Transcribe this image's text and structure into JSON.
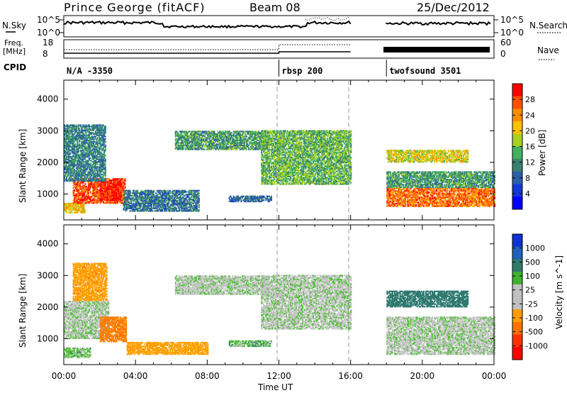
{
  "header": {
    "station": "Prince George (fitACF)",
    "beam": "Beam 08",
    "date": "25/Dec/2012"
  },
  "summary": {
    "nsky_label": "N.Sky",
    "nsky_ticks": [
      "10^5",
      "10^0"
    ],
    "nsearch_label": "N.Search",
    "nsearch_ticks": [
      "10^5",
      "10^0"
    ],
    "freq_label_1": "Freq.",
    "freq_label_2": "[MHz]",
    "freq_ticks": [
      "18",
      "8"
    ],
    "nave_label": "Nave",
    "nave_ticks": [
      "60",
      "0"
    ],
    "cpid_label": "CPID",
    "cpid_segments": [
      {
        "label": "N/A  -3350",
        "start_hour": 0
      },
      {
        "label": "rbsp 200",
        "start_hour": 12
      },
      {
        "label": "twofsound 3501",
        "start_hour": 18
      }
    ]
  },
  "axes": {
    "ylabel": "Slant Range [km]",
    "yticks": [
      "4000",
      "3000",
      "2000",
      "1000"
    ],
    "xlabel": "Time UT",
    "xticks": [
      "00:00",
      "04:00",
      "08:00",
      "12:00",
      "16:00",
      "20:00",
      "00:00"
    ]
  },
  "colorbars": {
    "power": {
      "label": "Power [dB]",
      "ticks": [
        "28",
        "24",
        "20",
        "16",
        "12",
        "8",
        "4"
      ],
      "colors": [
        "#ff0000",
        "#ff5000",
        "#ff8c00",
        "#ffc000",
        "#a8d020",
        "#44b060",
        "#3a8070",
        "#2b5fa8",
        "#1438d8",
        "#0000ff"
      ]
    },
    "velocity": {
      "label": "Velocity [m s^-1]",
      "ticks": [
        "1000",
        "500",
        "100",
        "25",
        "-25",
        "-100",
        "-500",
        "-1000"
      ],
      "colors": [
        "#1030d0",
        "#2060b8",
        "#307a6a",
        "#40b030",
        "#c0c0c0",
        "#c0c0c0",
        "#ff9c00",
        "#ff7000",
        "#ff3000",
        "#ff0000"
      ]
    }
  },
  "chart_data": [
    {
      "type": "heatmap",
      "title": "Power",
      "xlabel": "Time UT",
      "ylabel": "Slant Range [km]",
      "xlim": [
        0,
        24
      ],
      "ylim": [
        180,
        4600
      ],
      "clabel": "Power [dB]",
      "clim": [
        0,
        30
      ],
      "regions": [
        {
          "t0": 0.0,
          "t1": 1.2,
          "r0": 400,
          "r1": 700,
          "value": 20
        },
        {
          "t0": 0.5,
          "t1": 3.4,
          "r0": 700,
          "r1": 1500,
          "value": 26
        },
        {
          "t0": 2.0,
          "t1": 3.2,
          "r0": 800,
          "r1": 1400,
          "value": 28
        },
        {
          "t0": 0.0,
          "t1": 2.3,
          "r0": 1400,
          "r1": 3200,
          "value": 10
        },
        {
          "t0": 3.3,
          "t1": 7.5,
          "r0": 450,
          "r1": 1100,
          "value": 9
        },
        {
          "t0": 6.2,
          "t1": 11.2,
          "r0": 2400,
          "r1": 3000,
          "value": 12
        },
        {
          "t0": 9.2,
          "t1": 11.6,
          "r0": 750,
          "r1": 950,
          "value": 8
        },
        {
          "t0": 11.0,
          "t1": 16.0,
          "r0": 1300,
          "r1": 3000,
          "value": 14
        },
        {
          "t0": 18.0,
          "t1": 24.0,
          "r0": 600,
          "r1": 1200,
          "value": 24
        },
        {
          "t0": 18.0,
          "t1": 24.0,
          "r0": 1200,
          "r1": 1700,
          "value": 12
        },
        {
          "t0": 18.0,
          "t1": 22.5,
          "r0": 2000,
          "r1": 2400,
          "value": 18
        }
      ]
    },
    {
      "type": "heatmap",
      "title": "Velocity",
      "xlabel": "Time UT",
      "ylabel": "Slant Range [km]",
      "xlim": [
        0,
        24
      ],
      "ylim": [
        180,
        4600
      ],
      "clabel": "Velocity [m s^-1]",
      "clim": [
        -1000,
        1000
      ],
      "regions": [
        {
          "t0": 0.0,
          "t1": 1.5,
          "r0": 400,
          "r1": 700,
          "value": 50
        },
        {
          "t0": 0.0,
          "t1": 2.5,
          "r0": 1000,
          "r1": 2200,
          "value": 0
        },
        {
          "t0": 0.5,
          "t1": 2.4,
          "r0": 2200,
          "r1": 3400,
          "value": -300
        },
        {
          "t0": 2.0,
          "t1": 3.5,
          "r0": 900,
          "r1": 1700,
          "value": -400
        },
        {
          "t0": 3.5,
          "t1": 8.0,
          "r0": 500,
          "r1": 900,
          "value": -200
        },
        {
          "t0": 6.2,
          "t1": 11.2,
          "r0": 2400,
          "r1": 3000,
          "value": 0
        },
        {
          "t0": 9.2,
          "t1": 11.6,
          "r0": 750,
          "r1": 950,
          "value": 60
        },
        {
          "t0": 11.0,
          "t1": 16.0,
          "r0": 1300,
          "r1": 3000,
          "value": 0
        },
        {
          "t0": 18.0,
          "t1": 24.0,
          "r0": 500,
          "r1": 1700,
          "value": 0
        },
        {
          "t0": 18.0,
          "t1": 22.5,
          "r0": 2000,
          "r1": 2500,
          "value": 200
        }
      ]
    }
  ]
}
